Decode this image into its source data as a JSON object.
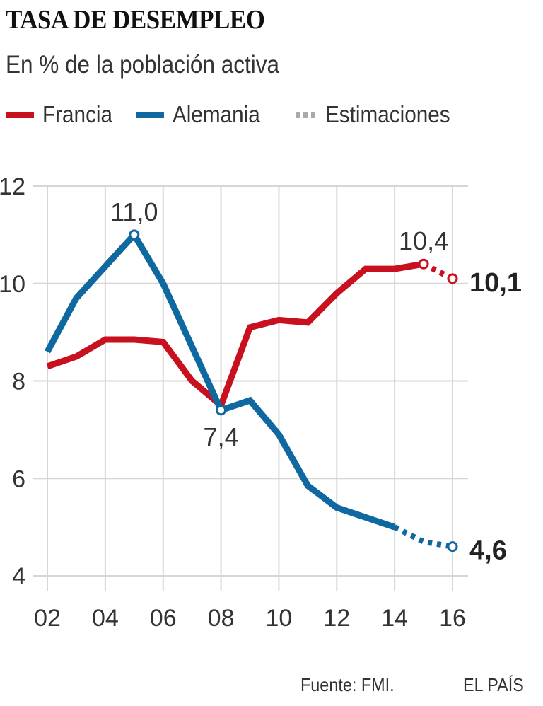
{
  "header": {
    "title": "TASA DE DESEMPLEO",
    "subtitle": "En % de la población activa"
  },
  "legend": {
    "items": [
      {
        "label": "Francia",
        "color": "#c8101e",
        "style": "solid"
      },
      {
        "label": "Alemania",
        "color": "#0f68a0",
        "style": "solid"
      },
      {
        "label": "Estimaciones",
        "color": "#aaaaaa",
        "style": "dotted"
      }
    ]
  },
  "footer": {
    "source": "Fuente: FMI.",
    "brand": "EL PAÍS"
  },
  "chart_data": {
    "type": "line",
    "title": "TASA DE DESEMPLEO",
    "subtitle": "En % de la población activa",
    "xlabel": "",
    "ylabel": "",
    "x": [
      2002,
      2003,
      2004,
      2005,
      2006,
      2007,
      2008,
      2009,
      2010,
      2011,
      2012,
      2013,
      2014,
      2015,
      2016
    ],
    "x_ticks": [
      2002,
      2004,
      2006,
      2008,
      2010,
      2012,
      2014,
      2016
    ],
    "x_tick_labels": [
      "02",
      "04",
      "06",
      "08",
      "10",
      "12",
      "14",
      "16"
    ],
    "y_ticks": [
      4,
      6,
      8,
      10,
      12
    ],
    "y_tick_labels": [
      "4",
      "6",
      "8",
      "10",
      "12"
    ],
    "ylim": [
      4,
      12
    ],
    "xlim": [
      2002,
      2016
    ],
    "grid": true,
    "legend_position": "top-left",
    "series": [
      {
        "name": "Francia",
        "color": "#c8101e",
        "values": [
          8.3,
          8.5,
          8.85,
          8.85,
          8.8,
          8.0,
          7.5,
          9.1,
          9.25,
          9.2,
          9.8,
          10.3,
          10.3,
          10.4,
          10.1
        ],
        "estimate_from": 2015,
        "annotations": [
          {
            "x": 2015,
            "value": 10.4,
            "label": "10,4",
            "position": "above",
            "bold": false
          },
          {
            "x": 2016,
            "value": 10.1,
            "label": "10,1",
            "position": "right",
            "bold": true
          }
        ]
      },
      {
        "name": "Alemania",
        "color": "#0f68a0",
        "values": [
          8.6,
          9.7,
          10.35,
          11.0,
          10.0,
          8.7,
          7.4,
          7.6,
          6.9,
          5.85,
          5.4,
          5.2,
          5.0,
          4.7,
          4.6
        ],
        "estimate_from": 2014,
        "annotations": [
          {
            "x": 2005,
            "value": 11.0,
            "label": "11,0",
            "position": "above",
            "bold": false
          },
          {
            "x": 2008,
            "value": 7.4,
            "label": "7,4",
            "position": "below",
            "bold": false
          },
          {
            "x": 2016,
            "value": 4.6,
            "label": "4,6",
            "position": "right",
            "bold": true
          }
        ]
      }
    ]
  }
}
